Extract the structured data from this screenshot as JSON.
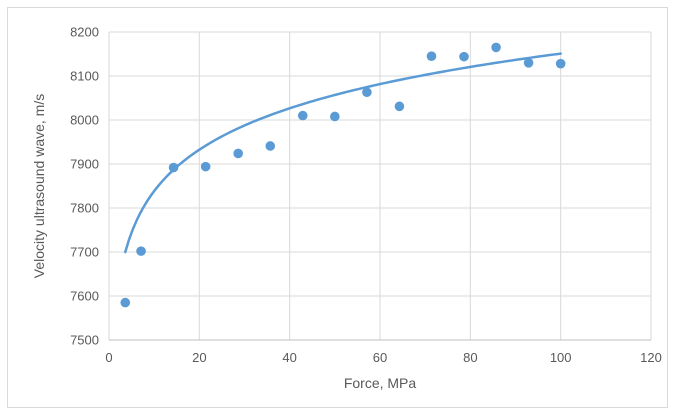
{
  "chart_data": {
    "type": "scatter",
    "title": "",
    "xlabel": "Force, MPa",
    "ylabel": "Velocity ultrasound wave, m/s",
    "xlim": [
      0,
      120
    ],
    "ylim": [
      7500,
      8200
    ],
    "xticks": [
      0,
      20,
      40,
      60,
      80,
      100,
      120
    ],
    "yticks": [
      7500,
      7600,
      7700,
      7800,
      7900,
      8000,
      8100,
      8200
    ],
    "xtick_labels": [
      "0",
      "20",
      "40",
      "60",
      "80",
      "100",
      "120"
    ],
    "ytick_labels": [
      "7500",
      "7600",
      "7700",
      "7800",
      "7900",
      "8000",
      "8100",
      "8200"
    ],
    "grid": true,
    "legend": "none",
    "series": [
      {
        "marker_color": "#5b9bd5",
        "x": [
          3.6,
          7.1,
          14.3,
          21.4,
          28.6,
          35.7,
          42.9,
          50.0,
          57.1,
          64.3,
          71.4,
          78.6,
          85.7,
          92.9,
          100.0
        ],
        "y": [
          7585,
          7702,
          7892,
          7894,
          7924,
          7941,
          8010,
          8008,
          8063,
          8031,
          8145,
          8144,
          8165,
          8130,
          8128
        ]
      }
    ],
    "trendline": {
      "kind": "logarithmic",
      "color": "#5b9bd5",
      "a": 7526.0,
      "b": 135.7,
      "x_range": [
        3.6,
        100.0
      ]
    }
  }
}
